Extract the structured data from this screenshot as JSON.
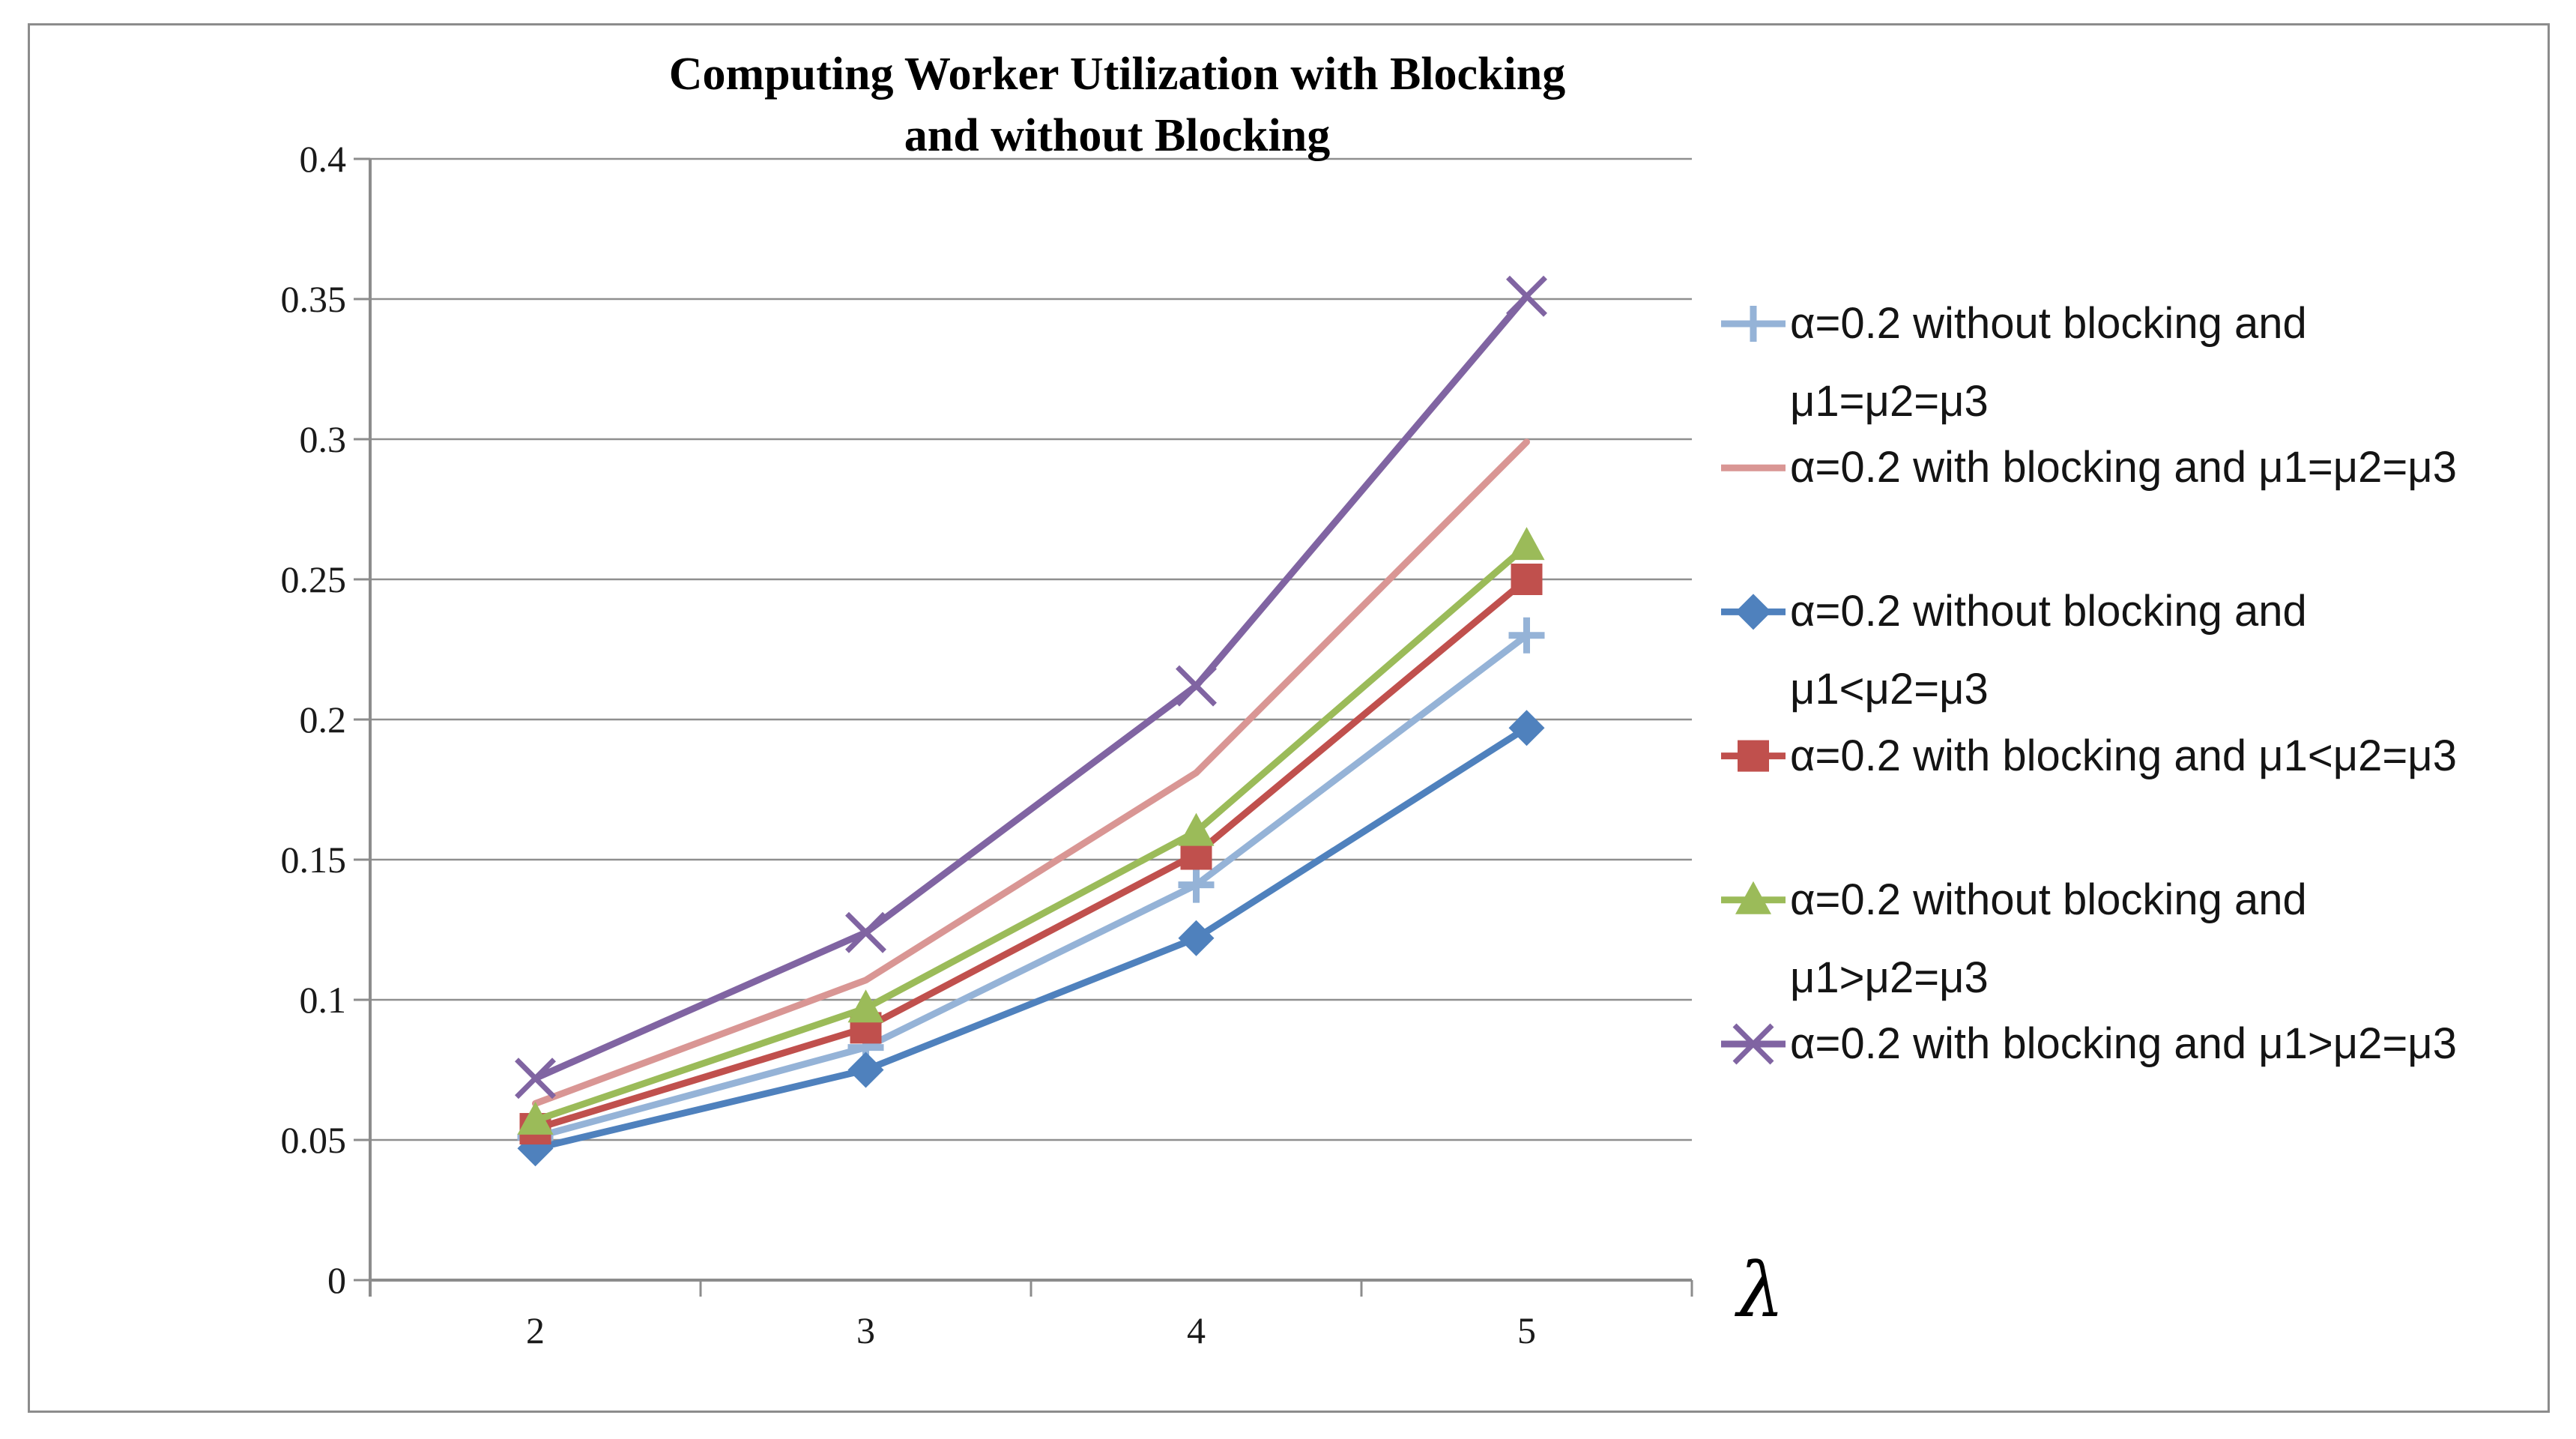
{
  "page": {
    "background_color": "#ffffff",
    "frame_border_color": "#8c8c8c",
    "axis_color": "#8c8c8c",
    "gridline_color": "#8f8f8f",
    "text_color": "#1a1a1a"
  },
  "chart_data": {
    "type": "line",
    "title": "Computing Worker Utilization with Blocking and without Blocking",
    "title_lines": [
      "Computing Worker Utilization with Blocking",
      "and without Blocking"
    ],
    "xlabel": "λ",
    "ylabel": "",
    "categories": [
      2,
      3,
      4,
      5
    ],
    "x_tick_labels": [
      "2",
      "3",
      "4",
      "5"
    ],
    "ylim": [
      0,
      0.4
    ],
    "y_tick_step": 0.05,
    "y_tick_labels": [
      "0",
      "0.05",
      "0.1",
      "0.15",
      "0.2",
      "0.25",
      "0.3",
      "0.35",
      "0.4"
    ],
    "grid": true,
    "legend_position": "right",
    "series": [
      {
        "name": "α=0.2 without blocking and μ1=μ2=μ3",
        "legend_lines": [
          "α=0.2 without blocking and",
          "μ1=μ2=μ3"
        ],
        "color": "#95B3D7",
        "marker": "plus",
        "values": [
          0.051,
          0.083,
          0.141,
          0.23
        ]
      },
      {
        "name": "α=0.2 with blocking and μ1=μ2=μ3",
        "legend_lines": [
          "α=0.2 with blocking and μ1=μ2=μ3"
        ],
        "color": "#D99694",
        "marker": "none",
        "values": [
          0.063,
          0.107,
          0.181,
          0.299
        ]
      },
      {
        "name": "α=0.2 without blocking and μ1<μ2=μ3",
        "legend_lines": [
          "α=0.2 without blocking and",
          "μ1<μ2=μ3"
        ],
        "color": "#4F81BD",
        "marker": "diamond",
        "values": [
          0.047,
          0.075,
          0.122,
          0.197
        ]
      },
      {
        "name": "α=0.2 with blocking and μ1<μ2=μ3",
        "legend_lines": [
          "α=0.2 with blocking and μ1<μ2=μ3"
        ],
        "color": "#C0504D",
        "marker": "square",
        "values": [
          0.054,
          0.09,
          0.152,
          0.25
        ]
      },
      {
        "name": "α=0.2 without blocking and μ1>μ2=μ3",
        "legend_lines": [
          "α=0.2 without blocking and",
          "μ1>μ2=μ3"
        ],
        "color": "#9BBB59",
        "marker": "triangle",
        "values": [
          0.057,
          0.097,
          0.16,
          0.262
        ]
      },
      {
        "name": "α=0.2 with blocking and μ1>μ2=μ3",
        "legend_lines": [
          "α=0.2 with blocking and μ1>μ2=μ3"
        ],
        "color": "#8064A2",
        "marker": "x",
        "values": [
          0.072,
          0.124,
          0.212,
          0.351
        ]
      }
    ]
  }
}
